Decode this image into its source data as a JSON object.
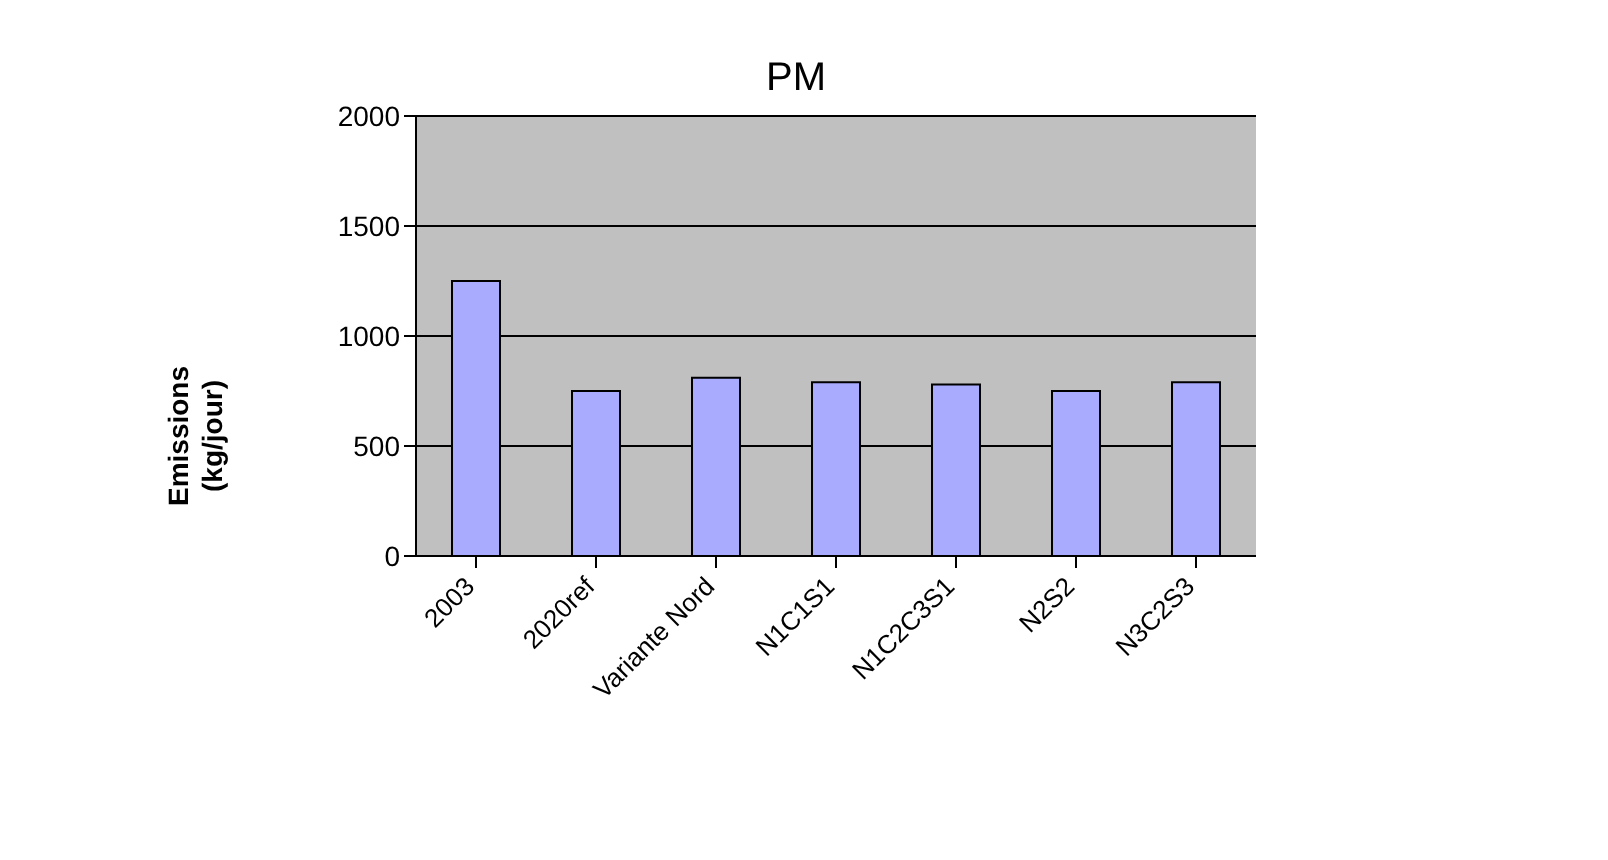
{
  "chart_data": {
    "type": "bar",
    "title": "PM",
    "ylabel": "Emissions\n(kg/jour)",
    "categories": [
      "2003",
      "2020ref",
      "Variante Nord",
      "N1C1S1",
      "N1C2C3S1",
      "N2S2",
      "N3C2S3"
    ],
    "values": [
      1250,
      750,
      810,
      790,
      780,
      750,
      790
    ],
    "color": "#a9abff",
    "ylim": [
      0,
      2000
    ],
    "yticks": [
      0,
      500,
      1000,
      1500,
      2000
    ],
    "grid": "y",
    "legend": false
  }
}
